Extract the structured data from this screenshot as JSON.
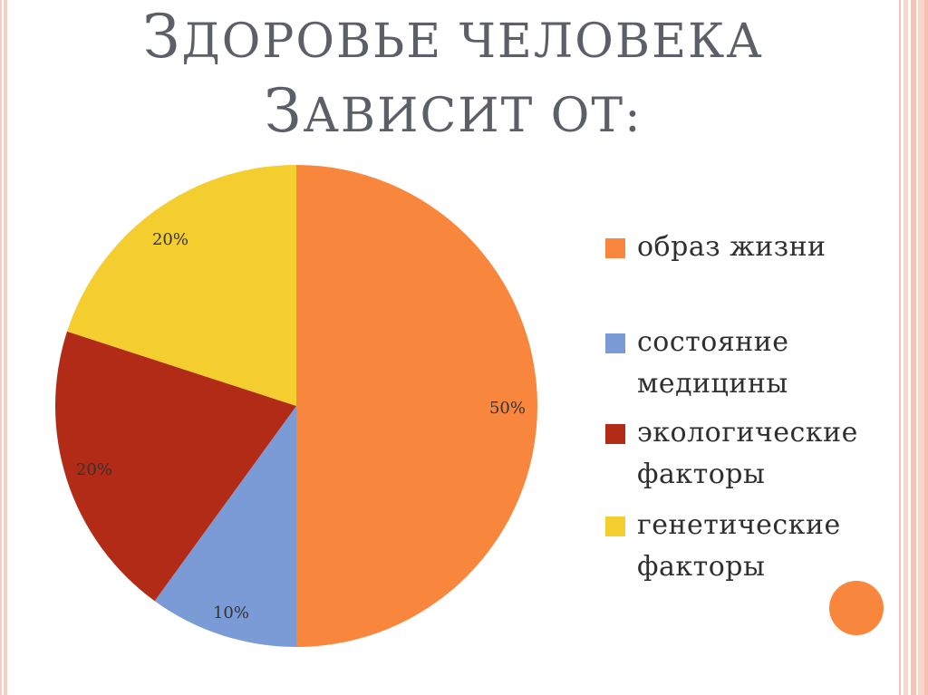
{
  "slide": {
    "title_line1": "Здоровье человека",
    "title_line2": "зависит от:"
  },
  "chart_data": {
    "type": "pie",
    "categories": [
      "образ жизни",
      "состояние медицины",
      "экологические факторы",
      "генетические факторы"
    ],
    "values": [
      50,
      10,
      20,
      20
    ],
    "labels": [
      "50%",
      "10%",
      "20%",
      "20%"
    ],
    "colors": [
      "#f8863d",
      "#7b9bd6",
      "#b22b17",
      "#f4cd2f"
    ],
    "legend_position": "right",
    "start_angle": "top, clockwise"
  },
  "legend": [
    {
      "label": "образ жизни",
      "color": "#f8863d"
    },
    {
      "label": "состояние медицины",
      "color": "#7b9bd6"
    },
    {
      "label": "экологические факторы",
      "color": "#b22b17"
    },
    {
      "label": "генетические факторы",
      "color": "#f4cd2f"
    }
  ],
  "decoration": {
    "circle_color": "#f8863d"
  }
}
